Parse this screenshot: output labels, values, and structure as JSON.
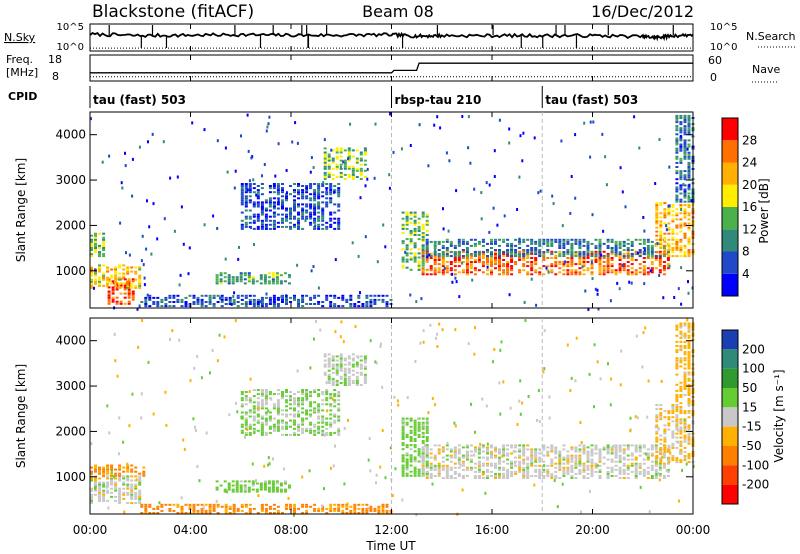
{
  "header": {
    "station": "Blackstone (fitACF)",
    "beam": "Beam 08",
    "date": "16/Dec/2012"
  },
  "summary": {
    "left_labels": {
      "nsky": "N.Sky",
      "freq": "Freq.",
      "freq_unit": "[MHz]",
      "cpid": "CPID"
    },
    "right_labels": {
      "nsearch": "N.Search",
      "nave": "Nave"
    },
    "noise_ticks_left": [
      "10^5",
      "10^0"
    ],
    "noise_ticks_right": [
      "10^5",
      "10^0"
    ],
    "freq_ticks": [
      "18",
      "8"
    ],
    "nave_ticks": [
      "60",
      "0"
    ],
    "cpid_segments": [
      {
        "label": "tau (fast) 503",
        "start_hour": 0
      },
      {
        "label": "rbsp-tau 210",
        "start_hour": 12
      },
      {
        "label": "tau (fast) 503",
        "start_hour": 18
      }
    ]
  },
  "axes": {
    "xlabel": "Time UT",
    "xticks": [
      "00:00",
      "04:00",
      "08:00",
      "12:00",
      "16:00",
      "20:00",
      "00:00"
    ],
    "ylabel": "Slant Range [km]",
    "yticks": [
      "1000",
      "2000",
      "3000",
      "4000"
    ]
  },
  "colorbars": {
    "power": {
      "label": "Power [dB]",
      "ticks": [
        "4",
        "8",
        "12",
        "16",
        "20",
        "24",
        "28"
      ],
      "colors": [
        "#0000ff",
        "#1f49c8",
        "#2f8a7a",
        "#4bb24b",
        "#ffee00",
        "#ffb000",
        "#ff7000",
        "#ff0000"
      ]
    },
    "velocity": {
      "label": "Velocity [m s⁻¹]",
      "ticks": [
        "200",
        "100",
        "50",
        "15",
        "-15",
        "-50",
        "-100",
        "-200"
      ],
      "colors": [
        "#1a3fb0",
        "#2f8a7a",
        "#2f9a2f",
        "#66cc33",
        "#c8c8c8",
        "#ffb000",
        "#ff8000",
        "#ff4000",
        "#ff0000"
      ]
    }
  },
  "chart_data": [
    {
      "type": "line",
      "title": "N.Sky / N.Search",
      "x_unit": "hour UT",
      "xlim": [
        0,
        24
      ],
      "ylim_log10": [
        0,
        5
      ],
      "series": [
        {
          "name": "N.Sky",
          "x": [
            0,
            2,
            4,
            6,
            8,
            10,
            12,
            13,
            14,
            16,
            18,
            20,
            22,
            22.5,
            23,
            24
          ],
          "log10_values": [
            3.2,
            2.9,
            3.0,
            3.1,
            3.0,
            3.0,
            3.1,
            2.8,
            2.9,
            2.9,
            2.9,
            2.9,
            2.7,
            2.5,
            2.8,
            3.1
          ]
        },
        {
          "name": "N.Search",
          "x": [
            0,
            24
          ],
          "log10_values": [
            0.2,
            0.2
          ]
        }
      ]
    },
    {
      "type": "line",
      "title": "Freq. / Nave",
      "x_unit": "hour UT",
      "xlim": [
        0,
        24
      ],
      "freq_ylim": [
        8,
        18
      ],
      "nave_ylim": [
        0,
        60
      ],
      "series": [
        {
          "name": "Freq.",
          "x": [
            0,
            12,
            12.1,
            13,
            13.1,
            24
          ],
          "values": [
            11,
            11,
            12,
            12,
            15,
            15
          ]
        },
        {
          "name": "Nave",
          "x": [
            0,
            24
          ],
          "values": [
            8,
            8
          ]
        }
      ]
    },
    {
      "type": "heatmap",
      "quantity": "Power",
      "unit": "dB",
      "xlim": [
        0,
        24
      ],
      "ylim": [
        180,
        4500
      ],
      "clim": [
        0,
        30
      ],
      "regions": [
        {
          "t": [
            0.7,
            1.7
          ],
          "r": [
            250,
            800
          ],
          "value": 28
        },
        {
          "t": [
            0.0,
            2.0
          ],
          "r": [
            600,
            1100
          ],
          "value": 20
        },
        {
          "t": [
            0.0,
            0.6
          ],
          "r": [
            1300,
            1800
          ],
          "value": 14
        },
        {
          "t": [
            5.0,
            8.0
          ],
          "r": [
            700,
            950
          ],
          "value": 12
        },
        {
          "t": [
            2.0,
            12.0
          ],
          "r": [
            200,
            450
          ],
          "value": 6
        },
        {
          "t": [
            9.3,
            11.0
          ],
          "r": [
            3000,
            3700
          ],
          "value": 14
        },
        {
          "t": [
            6.0,
            10.0
          ],
          "r": [
            1900,
            2900
          ],
          "value": 6
        },
        {
          "t": [
            12.4,
            13.5
          ],
          "r": [
            1000,
            2300
          ],
          "value": 14
        },
        {
          "t": [
            13.2,
            23.0
          ],
          "r": [
            900,
            1400
          ],
          "value": 26
        },
        {
          "t": [
            13.2,
            23.0
          ],
          "r": [
            1300,
            1700
          ],
          "value": 9
        },
        {
          "t": [
            22.5,
            24.0
          ],
          "r": [
            1300,
            2500
          ],
          "value": 22
        },
        {
          "t": [
            23.3,
            24.0
          ],
          "r": [
            2500,
            4400
          ],
          "value": 8
        }
      ]
    },
    {
      "type": "heatmap",
      "quantity": "Velocity",
      "unit": "m s⁻¹",
      "xlim": [
        0,
        24
      ],
      "ylim": [
        180,
        4500
      ],
      "clim": [
        -200,
        200
      ],
      "regions": [
        {
          "t": [
            0.0,
            2.0
          ],
          "r": [
            400,
            1000
          ],
          "value": 0
        },
        {
          "t": [
            0.0,
            2.2
          ],
          "r": [
            1000,
            1250
          ],
          "value": -60
        },
        {
          "t": [
            5.0,
            8.0
          ],
          "r": [
            650,
            900
          ],
          "value": 30
        },
        {
          "t": [
            2.0,
            12.0
          ],
          "r": [
            180,
            400
          ],
          "value": -60
        },
        {
          "t": [
            9.3,
            11.0
          ],
          "r": [
            3000,
            3700
          ],
          "value": 5
        },
        {
          "t": [
            6.0,
            10.0
          ],
          "r": [
            1900,
            2900
          ],
          "value": 20
        },
        {
          "t": [
            12.4,
            13.5
          ],
          "r": [
            1000,
            2300
          ],
          "value": 30
        },
        {
          "t": [
            13.2,
            23.0
          ],
          "r": [
            950,
            1700
          ],
          "value": 0
        },
        {
          "t": [
            22.5,
            24.0
          ],
          "r": [
            1300,
            2600
          ],
          "value": -20
        },
        {
          "t": [
            23.3,
            24.0
          ],
          "r": [
            2600,
            4400
          ],
          "value": -30
        }
      ]
    }
  ]
}
